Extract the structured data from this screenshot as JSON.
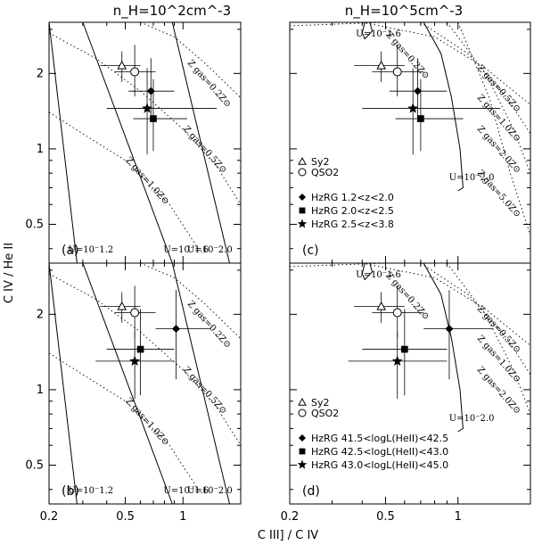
{
  "figure": {
    "col_titles": [
      "n_H=10^2cm^-3",
      "n_H=10^5cm^-3"
    ],
    "xlabel": "C III] / C IV",
    "ylabel": "C IV / He II"
  },
  "chart_data": [
    {
      "panel": "a",
      "type": "scatter",
      "density": "n_H=10^2 cm^-3",
      "x_scale": "log",
      "y_scale": "log",
      "xlim": [
        0.2,
        2.0
      ],
      "ylim": [
        0.35,
        3.2
      ],
      "xticks": [
        0.2,
        0.5,
        1
      ],
      "yticks": [
        0.5,
        1,
        2
      ],
      "series": [
        {
          "name": "Sy2",
          "marker": "triangle",
          "x": 0.48,
          "y": 2.15,
          "xerr": [
            0.37,
            0.6
          ],
          "yerr": [
            1.85,
            2.45
          ]
        },
        {
          "name": "QSO2",
          "marker": "circle",
          "x": 0.56,
          "y": 2.03,
          "xerr": [
            0.44,
            0.72
          ],
          "yerr": [
            1.62,
            2.6
          ]
        },
        {
          "name": "HzRG 1.2<z<2.0",
          "marker": "diamond",
          "x": 0.68,
          "y": 1.7,
          "xerr": [
            0.52,
            0.9
          ],
          "yerr": [
            1.28,
            2.3
          ]
        },
        {
          "name": "HzRG 2.0<z<2.5",
          "marker": "square",
          "x": 0.7,
          "y": 1.32,
          "xerr": [
            0.55,
            1.05
          ],
          "yerr": [
            0.98,
            1.9
          ]
        },
        {
          "name": "HzRG 2.5<z<3.8",
          "marker": "star",
          "x": 0.65,
          "y": 1.45,
          "xerr": [
            0.4,
            1.5
          ],
          "yerr": [
            0.95,
            2.1
          ]
        }
      ],
      "model_lines": [
        {
          "kind": "U",
          "label": "U=10^-1.2",
          "points": [
            [
              0.2,
              3.2
            ],
            [
              0.28,
              0.35
            ]
          ]
        },
        {
          "kind": "U",
          "label": "U=10^-1.6",
          "points": [
            [
              0.3,
              3.2
            ],
            [
              0.88,
              0.35
            ]
          ]
        },
        {
          "kind": "U",
          "label": "U=10^-2.0",
          "points": [
            [
              0.88,
              3.2
            ],
            [
              1.75,
              0.35
            ]
          ]
        },
        {
          "kind": "Z",
          "label": "Z_gas=1.0Z_sun",
          "points": [
            [
              0.2,
              1.4
            ],
            [
              0.3,
              1.15
            ],
            [
              0.5,
              0.9
            ],
            [
              0.85,
              0.6
            ],
            [
              1.2,
              0.4
            ]
          ]
        },
        {
          "kind": "Z",
          "label": "Z_gas=0.5Z_sun",
          "points": [
            [
              0.2,
              2.9
            ],
            [
              0.35,
              2.3
            ],
            [
              0.6,
              1.7
            ],
            [
              1.0,
              1.2
            ],
            [
              1.5,
              0.85
            ],
            [
              2.0,
              0.6
            ]
          ]
        },
        {
          "kind": "Z",
          "label": "Z_gas=0.2Z_sun",
          "points": [
            [
              0.6,
              3.2
            ],
            [
              0.9,
              2.8
            ],
            [
              1.3,
              2.2
            ],
            [
              2.0,
              1.6
            ]
          ]
        }
      ],
      "annotations": [
        "U=10^-1.2",
        "U=10^-1.6",
        "U=10^-2.0",
        "Z_gas=1.0Z_sun",
        "Z_gas=0.5Z_sun",
        "Z_gas=0.2Z_sun"
      ],
      "panel_label": "(a)"
    },
    {
      "panel": "b",
      "type": "scatter",
      "density": "n_H=10^2 cm^-3",
      "x_scale": "log",
      "y_scale": "log",
      "xlim": [
        0.2,
        2.0
      ],
      "ylim": [
        0.35,
        3.2
      ],
      "xticks": [
        0.2,
        0.5,
        1
      ],
      "yticks": [
        0.5,
        1,
        2
      ],
      "series": [
        {
          "name": "Sy2",
          "marker": "triangle",
          "x": 0.48,
          "y": 2.15,
          "xerr": [
            0.37,
            0.6
          ],
          "yerr": [
            1.85,
            2.45
          ]
        },
        {
          "name": "QSO2",
          "marker": "circle",
          "x": 0.56,
          "y": 2.03,
          "xerr": [
            0.44,
            0.72
          ],
          "yerr": [
            1.62,
            2.6
          ]
        },
        {
          "name": "HzRG 41.5<logL(HeII)<42.5",
          "marker": "diamond",
          "x": 0.92,
          "y": 1.75,
          "xerr": [
            0.72,
            1.4
          ],
          "yerr": [
            1.1,
            2.5
          ]
        },
        {
          "name": "HzRG 42.5<logL(HeII)<43.0",
          "marker": "square",
          "x": 0.6,
          "y": 1.45,
          "xerr": [
            0.4,
            0.9
          ],
          "yerr": [
            0.95,
            2.1
          ]
        },
        {
          "name": "HzRG 43.0<logL(HeII)<45.0",
          "marker": "star",
          "x": 0.56,
          "y": 1.3,
          "xerr": [
            0.35,
            0.9
          ],
          "yerr": [
            0.92,
            1.7
          ]
        }
      ],
      "model_lines": [
        {
          "kind": "U",
          "label": "U=10^-1.2",
          "points": [
            [
              0.2,
              3.2
            ],
            [
              0.28,
              0.35
            ]
          ]
        },
        {
          "kind": "U",
          "label": "U=10^-1.6",
          "points": [
            [
              0.3,
              3.2
            ],
            [
              0.88,
              0.35
            ]
          ]
        },
        {
          "kind": "U",
          "label": "U=10^-2.0",
          "points": [
            [
              0.88,
              3.2
            ],
            [
              1.75,
              0.35
            ]
          ]
        },
        {
          "kind": "Z",
          "label": "Z_gas=1.0Z_sun",
          "points": [
            [
              0.2,
              1.4
            ],
            [
              0.3,
              1.15
            ],
            [
              0.5,
              0.9
            ],
            [
              0.85,
              0.6
            ],
            [
              1.2,
              0.4
            ]
          ]
        },
        {
          "kind": "Z",
          "label": "Z_gas=0.5Z_sun",
          "points": [
            [
              0.2,
              2.9
            ],
            [
              0.35,
              2.3
            ],
            [
              0.6,
              1.7
            ],
            [
              1.0,
              1.2
            ],
            [
              1.5,
              0.85
            ],
            [
              2.0,
              0.6
            ]
          ]
        },
        {
          "kind": "Z",
          "label": "Z_gas=0.2Z_sun",
          "points": [
            [
              0.6,
              3.2
            ],
            [
              0.9,
              2.8
            ],
            [
              1.3,
              2.2
            ],
            [
              2.0,
              1.6
            ]
          ]
        }
      ],
      "annotations": [
        "U=10^-1.2",
        "U=10^-1.6",
        "U=10^-2.0",
        "Z_gas=1.0Z_sun",
        "Z_gas=0.5Z_sun",
        "Z_gas=0.2Z_sun"
      ],
      "panel_label": "(b)"
    },
    {
      "panel": "c",
      "type": "scatter",
      "density": "n_H=10^5 cm^-3",
      "x_scale": "log",
      "y_scale": "log",
      "xlim": [
        0.2,
        2.0
      ],
      "ylim": [
        0.35,
        3.2
      ],
      "xticks": [
        0.2,
        0.5,
        1
      ],
      "yticks": [
        0.5,
        1,
        2
      ],
      "series": [
        {
          "name": "Sy2",
          "marker": "triangle",
          "x": 0.48,
          "y": 2.15,
          "xerr": [
            0.37,
            0.6
          ],
          "yerr": [
            1.85,
            2.45
          ]
        },
        {
          "name": "QSO2",
          "marker": "circle",
          "x": 0.56,
          "y": 2.03,
          "xerr": [
            0.44,
            0.72
          ],
          "yerr": [
            1.62,
            2.6
          ]
        },
        {
          "name": "HzRG 1.2<z<2.0",
          "marker": "diamond",
          "x": 0.68,
          "y": 1.7,
          "xerr": [
            0.52,
            0.9
          ],
          "yerr": [
            1.28,
            2.3
          ]
        },
        {
          "name": "HzRG 2.0<z<2.5",
          "marker": "square",
          "x": 0.7,
          "y": 1.32,
          "xerr": [
            0.55,
            1.05
          ],
          "yerr": [
            0.98,
            1.9
          ]
        },
        {
          "name": "HzRG 2.5<z<3.8",
          "marker": "star",
          "x": 0.65,
          "y": 1.45,
          "xerr": [
            0.4,
            1.5
          ],
          "yerr": [
            0.95,
            2.1
          ]
        }
      ],
      "model_lines": [
        {
          "kind": "U",
          "label": "U=10^-1.6",
          "points": [
            [
              0.43,
              3.2
            ],
            [
              0.44,
              2.95
            ],
            [
              0.41,
              2.75
            ],
            [
              0.4,
              2.9
            ],
            [
              0.41,
              3.2
            ]
          ]
        },
        {
          "kind": "U",
          "label": "U=10^-2.0",
          "points": [
            [
              0.72,
              3.2
            ],
            [
              0.85,
              2.4
            ],
            [
              0.94,
              1.6
            ],
            [
              1.02,
              1.0
            ],
            [
              1.05,
              0.7
            ],
            [
              1.0,
              0.68
            ]
          ]
        },
        {
          "kind": "Z",
          "label": "Z_gas=0.2Z_sun",
          "points": [
            [
              0.2,
              3.1
            ],
            [
              0.5,
              3.2
            ]
          ]
        },
        {
          "kind": "Z",
          "label": "Z_gas=0.5Z_sun",
          "points": [
            [
              0.4,
              3.2
            ],
            [
              0.8,
              2.8
            ],
            [
              1.3,
              2.1
            ],
            [
              2.0,
              1.5
            ]
          ]
        },
        {
          "kind": "Z",
          "label": "Z_gas=1.0Z_sun",
          "points": [
            [
              0.7,
              3.2
            ],
            [
              1.1,
              2.4
            ],
            [
              1.6,
              1.6
            ],
            [
              2.0,
              1.15
            ]
          ]
        },
        {
          "kind": "Z",
          "label": "Z_gas=2.0Z_sun",
          "points": [
            [
              0.9,
              3.2
            ],
            [
              1.3,
              2.0
            ],
            [
              1.7,
              1.2
            ],
            [
              2.0,
              0.8
            ]
          ]
        },
        {
          "kind": "Z",
          "label": "Z_gas=5.0Z_sun",
          "points": [
            [
              1.0,
              3.2
            ],
            [
              1.35,
              1.6
            ],
            [
              1.65,
              0.8
            ],
            [
              2.0,
              0.45
            ]
          ]
        }
      ],
      "annotations": [
        "U=10^-1.6",
        "U=10^-2.0",
        "Z_gas=0.2Z_sun",
        "Z_gas=0.5Z_sun",
        "Z_gas=1.0Z_sun",
        "Z_gas=2.0Z_sun",
        "Z_gas=5.0Z_sun"
      ],
      "legend": [
        "Sy2",
        "QSO2",
        "HzRG 1.2<z<2.0",
        "HzRG 2.0<z<2.5",
        "HzRG 2.5<z<3.8"
      ],
      "panel_label": "(c)"
    },
    {
      "panel": "d",
      "type": "scatter",
      "density": "n_H=10^5 cm^-3",
      "x_scale": "log",
      "y_scale": "log",
      "xlim": [
        0.2,
        2.0
      ],
      "ylim": [
        0.35,
        3.2
      ],
      "xticks": [
        0.2,
        0.5,
        1
      ],
      "yticks": [
        0.5,
        1,
        2
      ],
      "series": [
        {
          "name": "Sy2",
          "marker": "triangle",
          "x": 0.48,
          "y": 2.15,
          "xerr": [
            0.37,
            0.6
          ],
          "yerr": [
            1.85,
            2.45
          ]
        },
        {
          "name": "QSO2",
          "marker": "circle",
          "x": 0.56,
          "y": 2.03,
          "xerr": [
            0.44,
            0.72
          ],
          "yerr": [
            1.62,
            2.6
          ]
        },
        {
          "name": "HzRG 41.5<logL(HeII)<42.5",
          "marker": "diamond",
          "x": 0.92,
          "y": 1.75,
          "xerr": [
            0.72,
            1.4
          ],
          "yerr": [
            1.1,
            2.5
          ]
        },
        {
          "name": "HzRG 42.5<logL(HeII)<43.0",
          "marker": "square",
          "x": 0.6,
          "y": 1.45,
          "xerr": [
            0.4,
            0.9
          ],
          "yerr": [
            0.95,
            2.1
          ]
        },
        {
          "name": "HzRG 43.0<logL(HeII)<45.0",
          "marker": "star",
          "x": 0.56,
          "y": 1.3,
          "xerr": [
            0.35,
            0.9
          ],
          "yerr": [
            0.92,
            1.7
          ]
        }
      ],
      "model_lines": [
        {
          "kind": "U",
          "label": "U=10^-1.6",
          "points": [
            [
              0.43,
              3.2
            ],
            [
              0.44,
              2.95
            ],
            [
              0.41,
              2.75
            ],
            [
              0.4,
              2.9
            ],
            [
              0.41,
              3.2
            ]
          ]
        },
        {
          "kind": "U",
          "label": "U=10^-2.0",
          "points": [
            [
              0.72,
              3.2
            ],
            [
              0.85,
              2.4
            ],
            [
              0.94,
              1.6
            ],
            [
              1.02,
              1.0
            ],
            [
              1.05,
              0.7
            ],
            [
              1.0,
              0.68
            ]
          ]
        },
        {
          "kind": "Z",
          "label": "Z_gas=0.2Z_sun",
          "points": [
            [
              0.2,
              3.1
            ],
            [
              0.5,
              3.2
            ]
          ]
        },
        {
          "kind": "Z",
          "label": "Z_gas=0.5Z_sun",
          "points": [
            [
              0.4,
              3.2
            ],
            [
              0.8,
              2.8
            ],
            [
              1.3,
              2.1
            ],
            [
              2.0,
              1.5
            ]
          ]
        },
        {
          "kind": "Z",
          "label": "Z_gas=1.0Z_sun",
          "points": [
            [
              0.7,
              3.2
            ],
            [
              1.1,
              2.4
            ],
            [
              1.6,
              1.6
            ],
            [
              2.0,
              1.15
            ]
          ]
        },
        {
          "kind": "Z",
          "label": "Z_gas=2.0Z_sun",
          "points": [
            [
              0.9,
              3.2
            ],
            [
              1.3,
              2.0
            ],
            [
              1.7,
              1.2
            ],
            [
              2.0,
              0.8
            ]
          ]
        }
      ],
      "annotations": [
        "U=10^-1.6",
        "U=10^-2.0",
        "Z_gas=0.2Z_sun",
        "Z_gas=0.5Z_sun",
        "Z_gas=1.0Z_sun",
        "Z_gas=2.0Z_sun"
      ],
      "legend": [
        "Sy2",
        "QSO2",
        "HzRG 41.5<logL(HeII)<42.5",
        "HzRG 42.5<logL(HeII)<43.0",
        "HzRG 43.0<logL(HeII)<45.0"
      ],
      "panel_label": "(d)"
    }
  ]
}
